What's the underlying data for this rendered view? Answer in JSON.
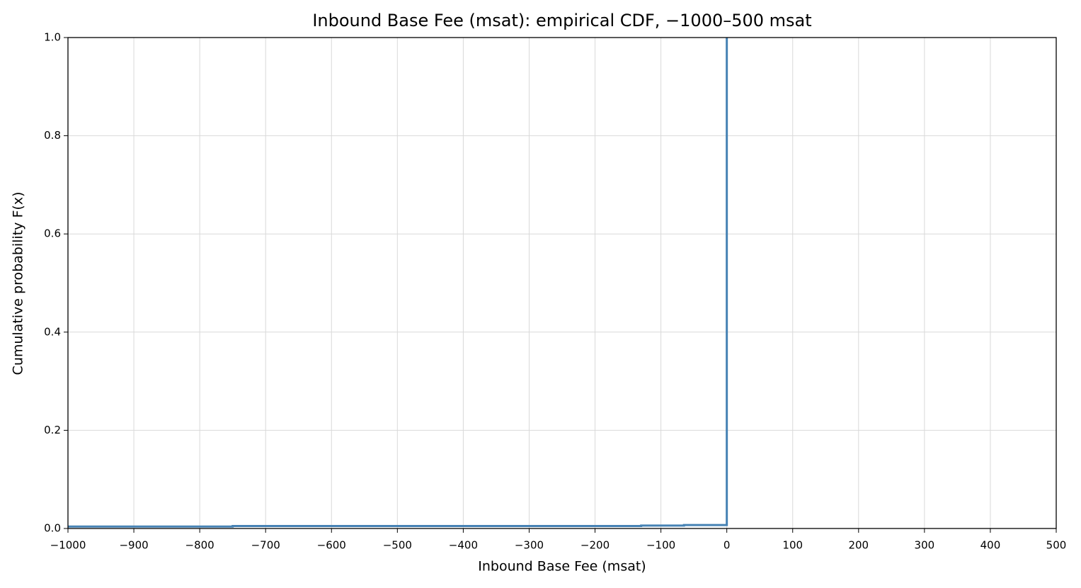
{
  "chart_data": {
    "type": "line",
    "title": "Inbound Base Fee (msat): empirical CDF, −1000–500 msat",
    "x_label": "Inbound Base Fee (msat)",
    "y_label": "Cumulative probability F(x)",
    "x": [
      -1000,
      -750,
      -750,
      -130,
      -130,
      -65,
      -65,
      0,
      0
    ],
    "series": [
      {
        "color": "#4682b4",
        "values": [
          0.004,
          0.004,
          0.005,
          0.005,
          0.006,
          0.006,
          0.007,
          0.007,
          1.0
        ]
      }
    ],
    "xlim": [
      -1000,
      500
    ],
    "ylim": [
      0,
      1
    ],
    "xticks": [
      {
        "value": -1000,
        "label": "−1000"
      },
      {
        "value": -900,
        "label": "−900"
      },
      {
        "value": -800,
        "label": "−800"
      },
      {
        "value": -700,
        "label": "−700"
      },
      {
        "value": -600,
        "label": "−600"
      },
      {
        "value": -500,
        "label": "−500"
      },
      {
        "value": -400,
        "label": "−400"
      },
      {
        "value": -300,
        "label": "−300"
      },
      {
        "value": -200,
        "label": "−200"
      },
      {
        "value": -100,
        "label": "−100"
      },
      0,
      100,
      200,
      300,
      400,
      500
    ],
    "yticks": [
      {
        "value": 0,
        "label": "0.0"
      },
      {
        "value": 0.2,
        "label": "0.2"
      },
      {
        "value": 0.4,
        "label": "0.4"
      },
      {
        "value": 0.6,
        "label": "0.6"
      },
      {
        "value": 0.8,
        "label": "0.8"
      },
      {
        "value": 1,
        "label": "1.0"
      }
    ],
    "grid": true
  }
}
